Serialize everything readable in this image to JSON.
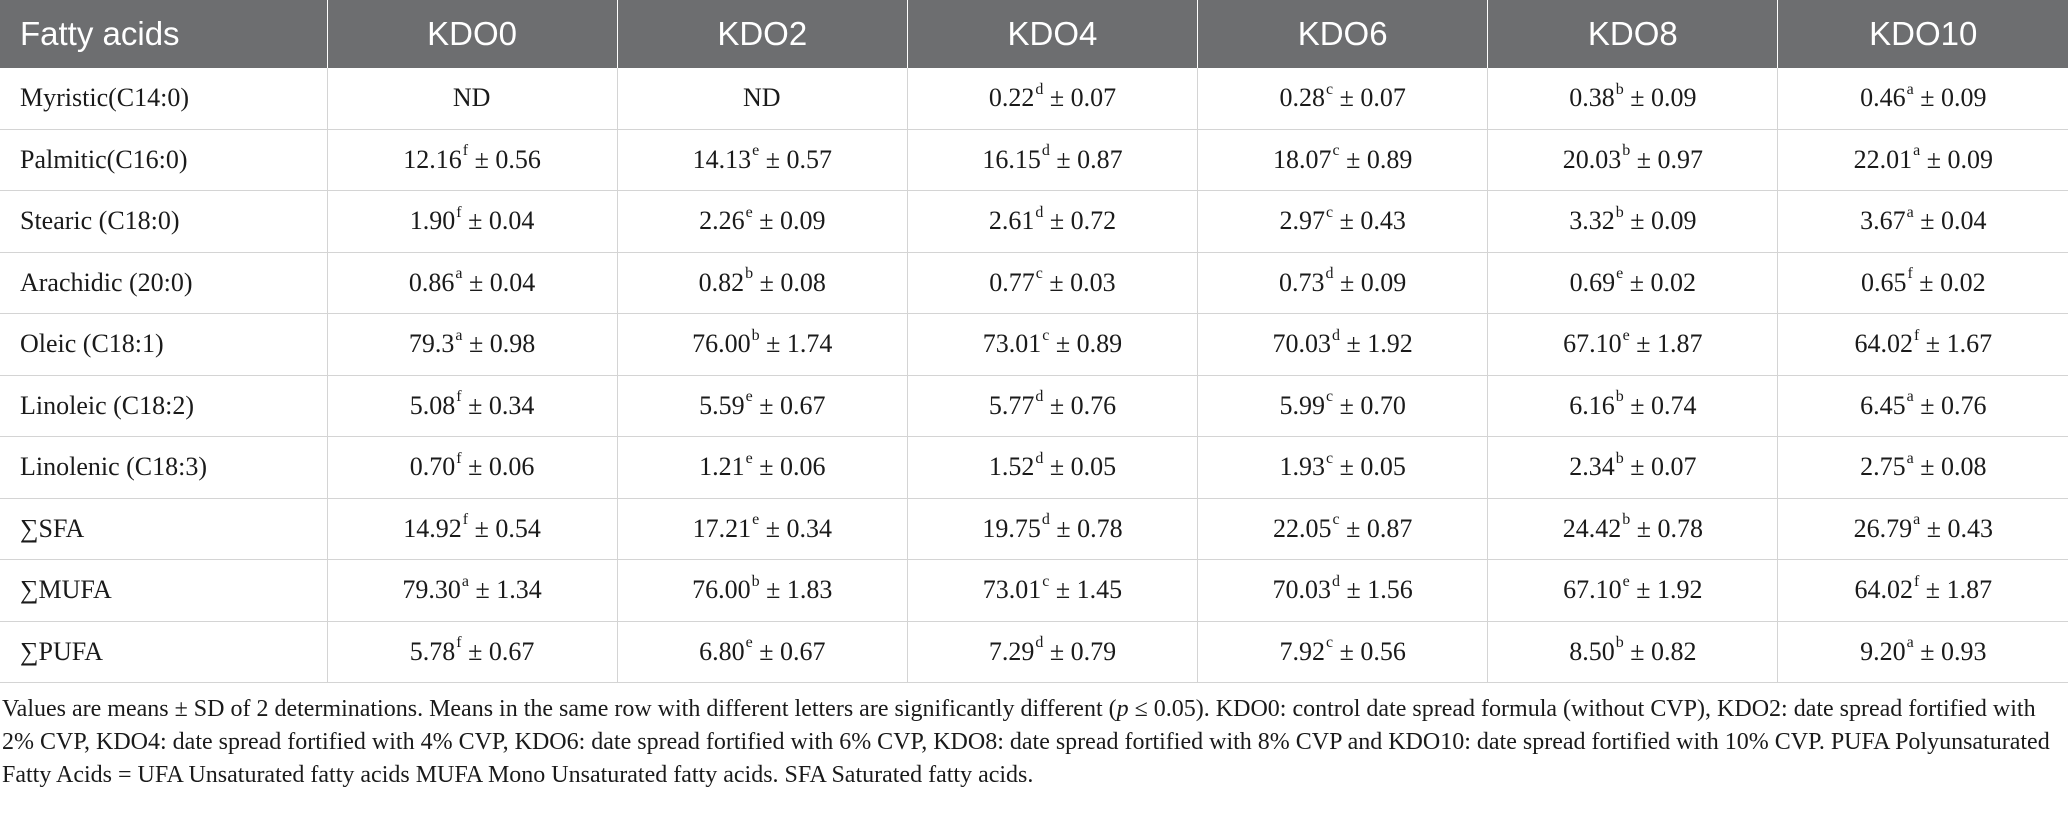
{
  "headers": [
    "Fatty acids",
    "KDO0",
    "KDO2",
    "KDO4",
    "KDO6",
    "KDO8",
    "KDO10"
  ],
  "rows": [
    {
      "name": "Myristic(C14:0)",
      "cells": [
        {
          "v": "ND",
          "s": "",
          "sd": ""
        },
        {
          "v": "ND",
          "s": "",
          "sd": ""
        },
        {
          "v": "0.22",
          "s": "d",
          "sd": " ± 0.07"
        },
        {
          "v": "0.28",
          "s": "c",
          "sd": " ± 0.07"
        },
        {
          "v": "0.38",
          "s": "b",
          "sd": " ± 0.09"
        },
        {
          "v": "0.46",
          "s": "a",
          "sd": " ± 0.09"
        }
      ]
    },
    {
      "name": "Palmitic(C16:0)",
      "cells": [
        {
          "v": "12.16",
          "s": "f",
          "sd": " ± 0.56"
        },
        {
          "v": "14.13",
          "s": "e",
          "sd": " ± 0.57"
        },
        {
          "v": "16.15",
          "s": "d",
          "sd": " ± 0.87"
        },
        {
          "v": "18.07",
          "s": "c",
          "sd": " ± 0.89"
        },
        {
          "v": "20.03",
          "s": "b",
          "sd": " ± 0.97"
        },
        {
          "v": "22.01",
          "s": "a",
          "sd": " ± 0.09"
        }
      ]
    },
    {
      "name": "Stearic (C18:0)",
      "cells": [
        {
          "v": "1.90",
          "s": "f",
          "sd": " ± 0.04"
        },
        {
          "v": "2.26",
          "s": "e",
          "sd": " ± 0.09"
        },
        {
          "v": "2.61",
          "s": "d",
          "sd": " ± 0.72"
        },
        {
          "v": "2.97",
          "s": "c",
          "sd": " ± 0.43"
        },
        {
          "v": "3.32",
          "s": "b",
          "sd": " ± 0.09"
        },
        {
          "v": "3.67",
          "s": "a",
          "sd": " ± 0.04"
        }
      ]
    },
    {
      "name": "Arachidic (20:0)",
      "cells": [
        {
          "v": "0.86",
          "s": "a",
          "sd": " ± 0.04"
        },
        {
          "v": "0.82",
          "s": "b",
          "sd": " ± 0.08"
        },
        {
          "v": "0.77",
          "s": "c",
          "sd": " ± 0.03"
        },
        {
          "v": "0.73",
          "s": "d",
          "sd": " ± 0.09"
        },
        {
          "v": "0.69",
          "s": "e",
          "sd": " ± 0.02"
        },
        {
          "v": "0.65",
          "s": "f",
          "sd": " ± 0.02"
        }
      ]
    },
    {
      "name": "Oleic (C18:1)",
      "cells": [
        {
          "v": "79.3",
          "s": "a",
          "sd": " ± 0.98"
        },
        {
          "v": "76.00",
          "s": "b",
          "sd": " ± 1.74"
        },
        {
          "v": "73.01",
          "s": "c",
          "sd": " ± 0.89"
        },
        {
          "v": "70.03",
          "s": "d",
          "sd": " ± 1.92"
        },
        {
          "v": "67.10",
          "s": "e",
          "sd": " ± 1.87"
        },
        {
          "v": "64.02",
          "s": "f",
          "sd": " ± 1.67"
        }
      ]
    },
    {
      "name": "Linoleic (C18:2)",
      "cells": [
        {
          "v": "5.08",
          "s": "f",
          "sd": " ± 0.34"
        },
        {
          "v": "5.59",
          "s": "e",
          "sd": " ± 0.67"
        },
        {
          "v": "5.77",
          "s": "d",
          "sd": " ± 0.76"
        },
        {
          "v": "5.99",
          "s": "c",
          "sd": " ± 0.70"
        },
        {
          "v": "6.16",
          "s": "b",
          "sd": " ± 0.74"
        },
        {
          "v": "6.45",
          "s": "a",
          "sd": " ± 0.76"
        }
      ]
    },
    {
      "name": "Linolenic (C18:3)",
      "cells": [
        {
          "v": "0.70",
          "s": "f",
          "sd": " ± 0.06"
        },
        {
          "v": "1.21",
          "s": "e",
          "sd": " ± 0.06"
        },
        {
          "v": "1.52",
          "s": "d",
          "sd": " ± 0.05"
        },
        {
          "v": "1.93",
          "s": "c",
          "sd": " ± 0.05"
        },
        {
          "v": "2.34",
          "s": "b",
          "sd": " ± 0.07"
        },
        {
          "v": "2.75",
          "s": "a",
          "sd": " ± 0.08"
        }
      ]
    },
    {
      "name": "∑SFA",
      "cells": [
        {
          "v": "14.92",
          "s": "f",
          "sd": " ± 0.54"
        },
        {
          "v": "17.21",
          "s": "e",
          "sd": " ± 0.34"
        },
        {
          "v": "19.75",
          "s": "d",
          "sd": " ± 0.78"
        },
        {
          "v": "22.05",
          "s": "c",
          "sd": " ± 0.87"
        },
        {
          "v": "24.42",
          "s": "b",
          "sd": " ± 0.78"
        },
        {
          "v": "26.79",
          "s": "a",
          "sd": " ± 0.43"
        }
      ]
    },
    {
      "name": "∑MUFA",
      "cells": [
        {
          "v": "79.30",
          "s": "a",
          "sd": " ± 1.34"
        },
        {
          "v": "76.00",
          "s": "b",
          "sd": " ± 1.83"
        },
        {
          "v": "73.01",
          "s": "c",
          "sd": " ± 1.45"
        },
        {
          "v": "70.03",
          "s": "d",
          "sd": " ± 1.56"
        },
        {
          "v": "67.10",
          "s": "e",
          "sd": " ± 1.92"
        },
        {
          "v": "64.02",
          "s": "f",
          "sd": " ± 1.87"
        }
      ]
    },
    {
      "name": "∑PUFA",
      "cells": [
        {
          "v": "5.78",
          "s": "f",
          "sd": " ± 0.67"
        },
        {
          "v": "6.80",
          "s": "e",
          "sd": " ± 0.67"
        },
        {
          "v": "7.29",
          "s": "d",
          "sd": " ± 0.79"
        },
        {
          "v": "7.92",
          "s": "c",
          "sd": " ± 0.56"
        },
        {
          "v": "8.50",
          "s": "b",
          "sd": " ± 0.82"
        },
        {
          "v": "9.20",
          "s": "a",
          "sd": " ± 0.93"
        }
      ]
    }
  ],
  "footnote": {
    "part1": "Values are means ± SD of 2 determinations. Means in the same row with different letters are significantly different (",
    "p": "p",
    "part2": " ≤ 0.05). KDO0: control date spread formula (without CVP), KDO2: date spread fortified with 2% CVP, KDO4: date spread fortified with 4% CVP, KDO6: date spread fortified with 6% CVP, KDO8: date spread fortified with 8% CVP and KDO10: date spread fortified with 10% CVP. PUFA Polyunsaturated Fatty Acids = UFA Unsaturated fatty acids MUFA Mono Unsaturated fatty acids. SFA Saturated fatty acids."
  }
}
